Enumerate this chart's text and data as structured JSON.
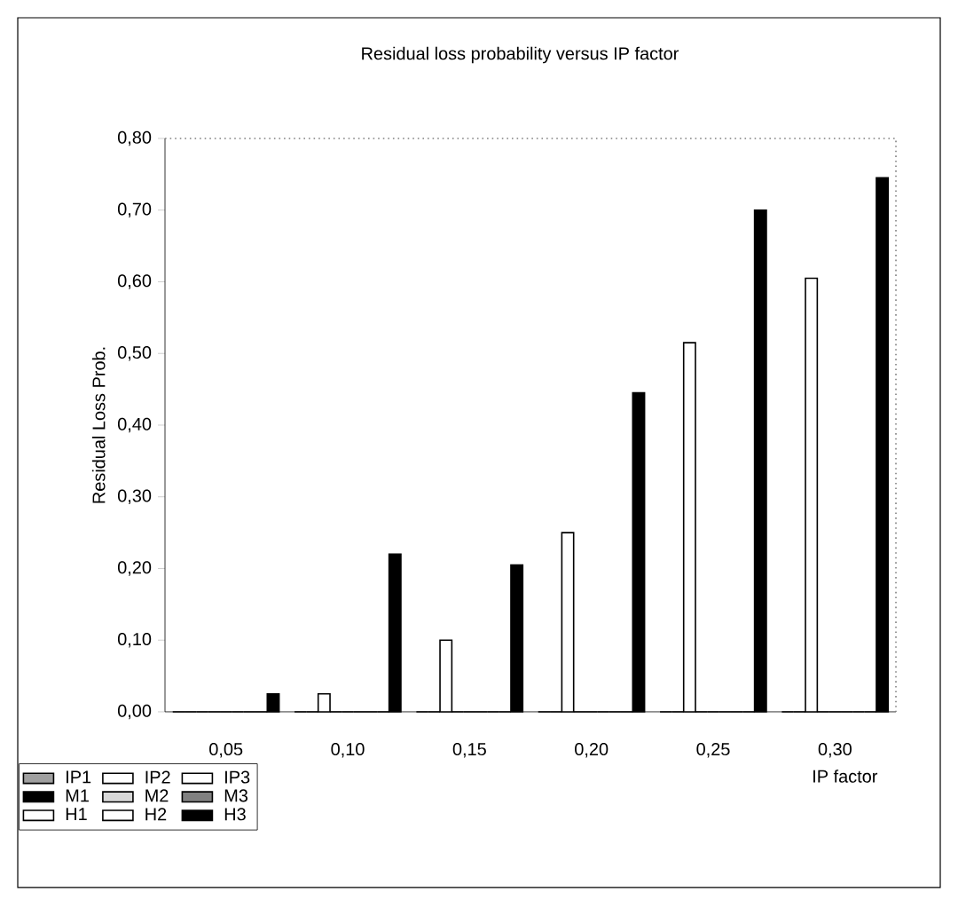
{
  "chart_data": {
    "type": "bar",
    "title": "Residual loss probability versus IP factor",
    "xlabel": "IP factor",
    "ylabel": "Residual Loss Prob.",
    "categories": [
      "0,05",
      "0,10",
      "0,15",
      "0,20",
      "0,25",
      "0,30"
    ],
    "ylim": [
      0,
      0.8
    ],
    "yticks": [
      {
        "value": 0,
        "label": "0,00"
      },
      {
        "value": 0.1,
        "label": "0,10"
      },
      {
        "value": 0.2,
        "label": "0,20"
      },
      {
        "value": 0.3,
        "label": "0,30"
      },
      {
        "value": 0.4,
        "label": "0,40"
      },
      {
        "value": 0.5,
        "label": "0,50"
      },
      {
        "value": 0.6,
        "label": "0,60"
      },
      {
        "value": 0.7,
        "label": "0,70"
      },
      {
        "value": 0.8,
        "label": "0,80"
      }
    ],
    "grid": false,
    "legend": "bottom left",
    "series": [
      {
        "name": "IP1",
        "color": "#a0a0a0",
        "values": [
          0,
          0,
          0,
          0,
          0,
          0
        ]
      },
      {
        "name": "IP2",
        "color": "#ffffff",
        "values": [
          0,
          0,
          0,
          0,
          0,
          0
        ]
      },
      {
        "name": "IP3",
        "color": "#ffffff",
        "values": [
          0,
          0.025,
          0.1,
          0.25,
          0.515,
          0.605
        ]
      },
      {
        "name": "M1",
        "color": "#000000",
        "values": [
          0,
          0,
          0,
          0,
          0,
          0
        ]
      },
      {
        "name": "M2",
        "color": "#d8d8d8",
        "values": [
          0,
          0,
          0,
          0,
          0,
          0
        ]
      },
      {
        "name": "M3",
        "color": "#808080",
        "values": [
          0,
          0,
          0,
          0,
          0,
          0
        ]
      },
      {
        "name": "H1",
        "color": "#ffffff",
        "values": [
          0,
          0,
          0,
          0,
          0,
          0
        ]
      },
      {
        "name": "H2",
        "color": "#ffffff",
        "values": [
          0,
          0,
          0,
          0,
          0,
          0
        ]
      },
      {
        "name": "H3",
        "color": "#000000",
        "values": [
          0.025,
          0.22,
          0.205,
          0.445,
          0.7,
          0.745
        ]
      }
    ]
  }
}
